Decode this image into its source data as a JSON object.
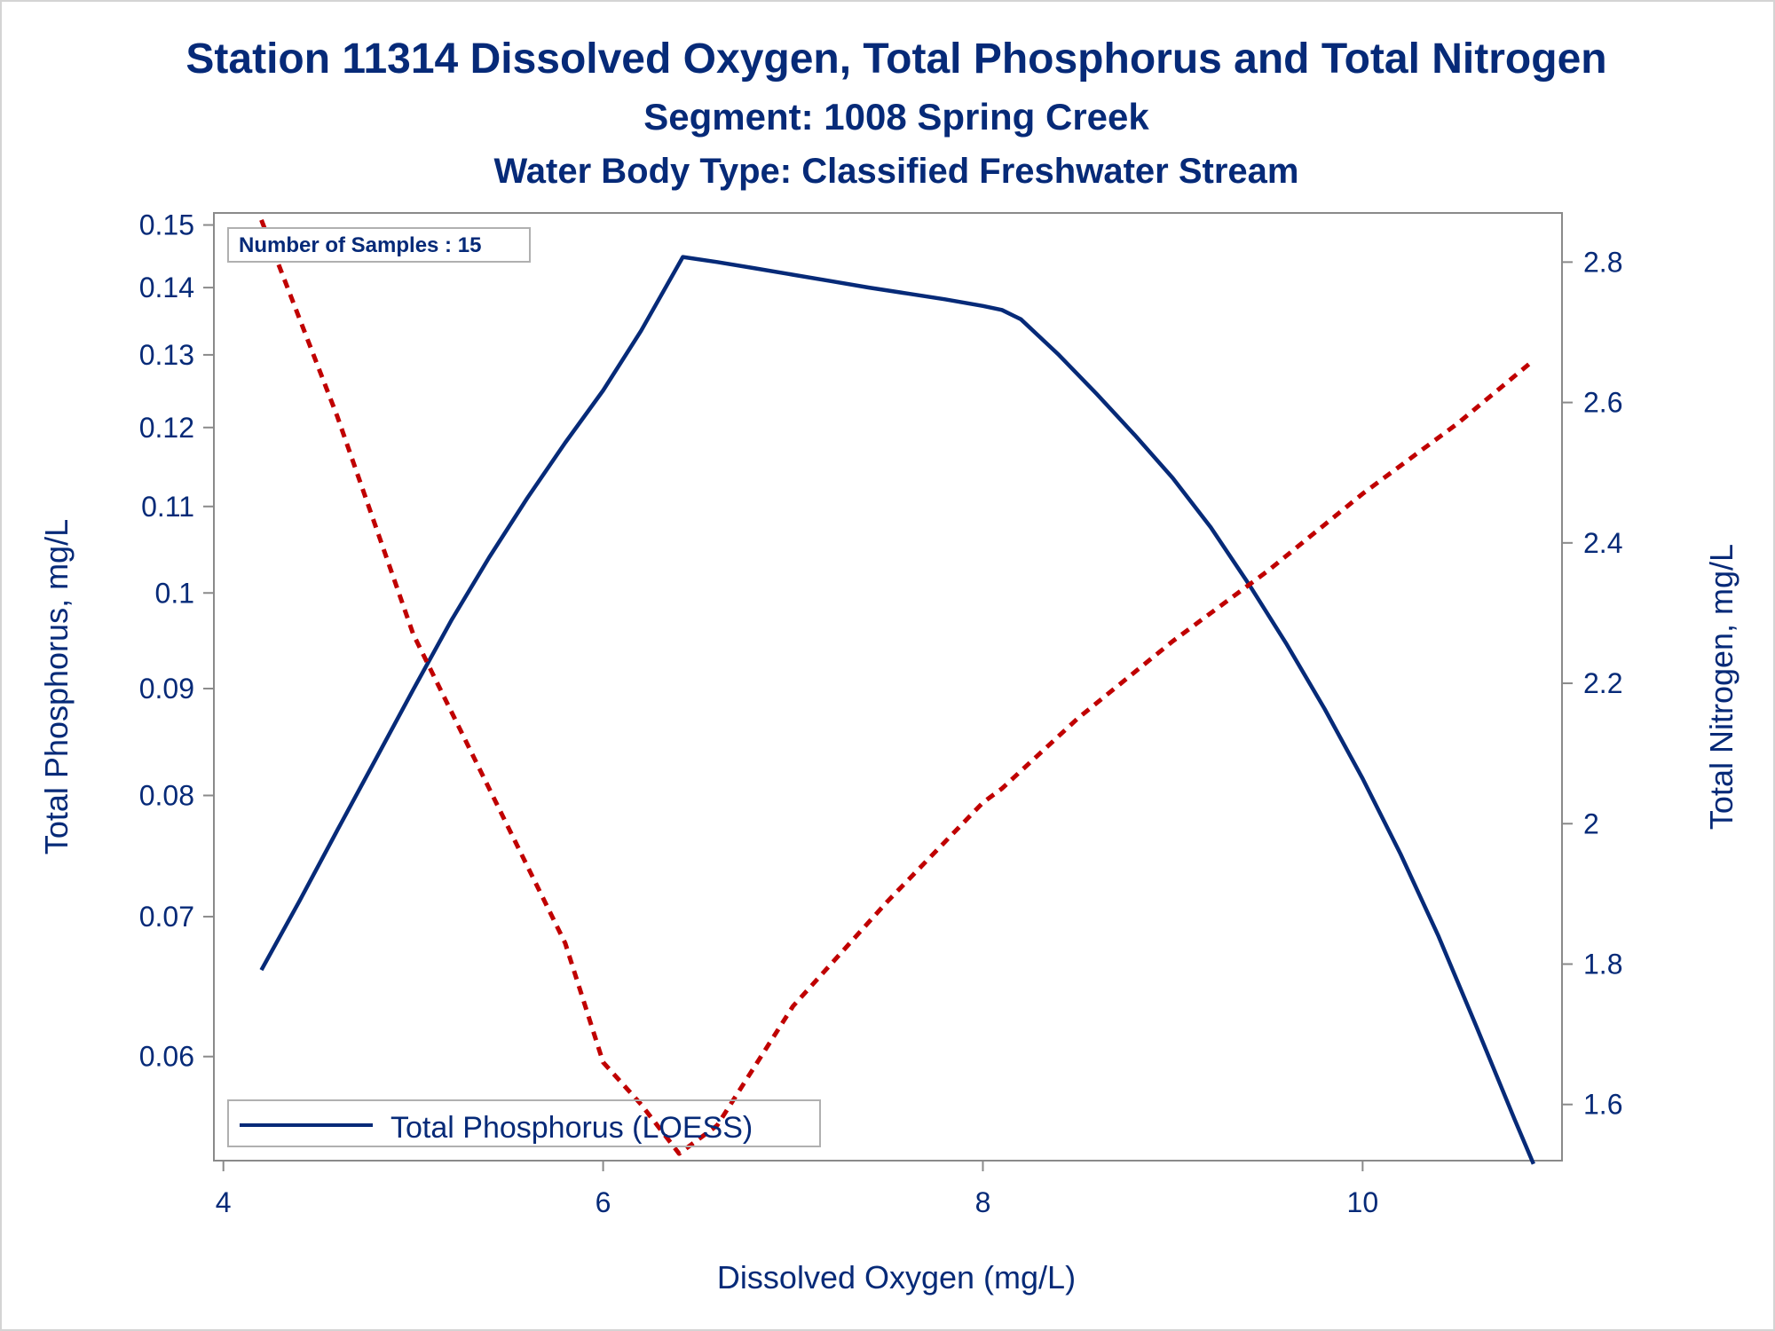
{
  "chart_data": {
    "type": "line",
    "title": "Station 11314  Dissolved Oxygen, Total Phosphorus and Total Nitrogen",
    "subtitle": "Segment: 1008  Spring Creek",
    "subtitle2": "Water Body Type: Classified Freshwater Stream",
    "xlabel": "Dissolved Oxygen (mg/L)",
    "ylabel": "Total Phosphorus, mg/L",
    "y2label": "Total Nitrogen, mg/L",
    "xlim": [
      3.95,
      11.05
    ],
    "ylim": [
      0.0535,
      0.152
    ],
    "yscale": "log",
    "y2lim": [
      1.52,
      2.87
    ],
    "xticks": [
      4,
      6,
      8,
      10
    ],
    "yticks": [
      0.06,
      0.07,
      0.08,
      0.09,
      0.1,
      0.11,
      0.12,
      0.13,
      0.14,
      0.15
    ],
    "ytick_labels": [
      "0.06",
      "0.07",
      "0.08",
      "0.09",
      "0.1",
      "0.11",
      "0.12",
      "0.13",
      "0.14",
      "0.15"
    ],
    "y2ticks": [
      1.6,
      1.8,
      2,
      2.2,
      2.4,
      2.6,
      2.8
    ],
    "y2tick_labels": [
      "1.6",
      "1.8",
      "2",
      "2.2",
      "2.4",
      "2.6",
      "2.8"
    ],
    "annotation": "Number of Samples : 15",
    "legend": {
      "label": "Total Phosphorus (LOESS)",
      "placement": "bottom-left"
    },
    "grid": false,
    "series": [
      {
        "name": "Total Phosphorus (LOESS)",
        "axis": "left",
        "style": "solid",
        "color": "#062a78",
        "x": [
          4.2,
          4.4,
          4.6,
          4.8,
          5.0,
          5.2,
          5.4,
          5.6,
          5.8,
          6.0,
          6.2,
          6.42,
          6.6,
          6.8,
          7.0,
          7.2,
          7.4,
          7.6,
          7.8,
          8.0,
          8.1,
          8.2,
          8.4,
          8.6,
          8.8,
          9.0,
          9.2,
          9.4,
          9.6,
          9.8,
          10.0,
          10.2,
          10.4,
          10.6,
          10.8,
          10.9
        ],
        "y": [
          0.066,
          0.0712,
          0.077,
          0.0832,
          0.0899,
          0.097,
          0.104,
          0.111,
          0.118,
          0.125,
          0.1335,
          0.1448,
          0.144,
          0.143,
          0.142,
          0.141,
          0.14,
          0.1391,
          0.1382,
          0.1372,
          0.1366,
          0.1352,
          0.13,
          0.1245,
          0.119,
          0.1135,
          0.1075,
          0.101,
          0.0945,
          0.088,
          0.0815,
          0.075,
          0.0685,
          0.062,
          0.056,
          0.0533
        ]
      },
      {
        "name": "",
        "axis": "right",
        "style": "dashed",
        "color": "#c00000",
        "x": [
          4.2,
          4.6,
          5.0,
          5.4,
          5.8,
          6.0,
          6.2,
          6.4,
          6.6,
          7.0,
          7.5,
          8.0,
          8.1,
          8.5,
          9.0,
          9.5,
          10.0,
          10.5,
          10.9
        ],
        "y": [
          2.86,
          2.58,
          2.27,
          2.05,
          1.83,
          1.66,
          1.6,
          1.53,
          1.57,
          1.74,
          1.89,
          2.03,
          2.05,
          2.15,
          2.26,
          2.36,
          2.47,
          2.57,
          2.66
        ]
      }
    ]
  }
}
